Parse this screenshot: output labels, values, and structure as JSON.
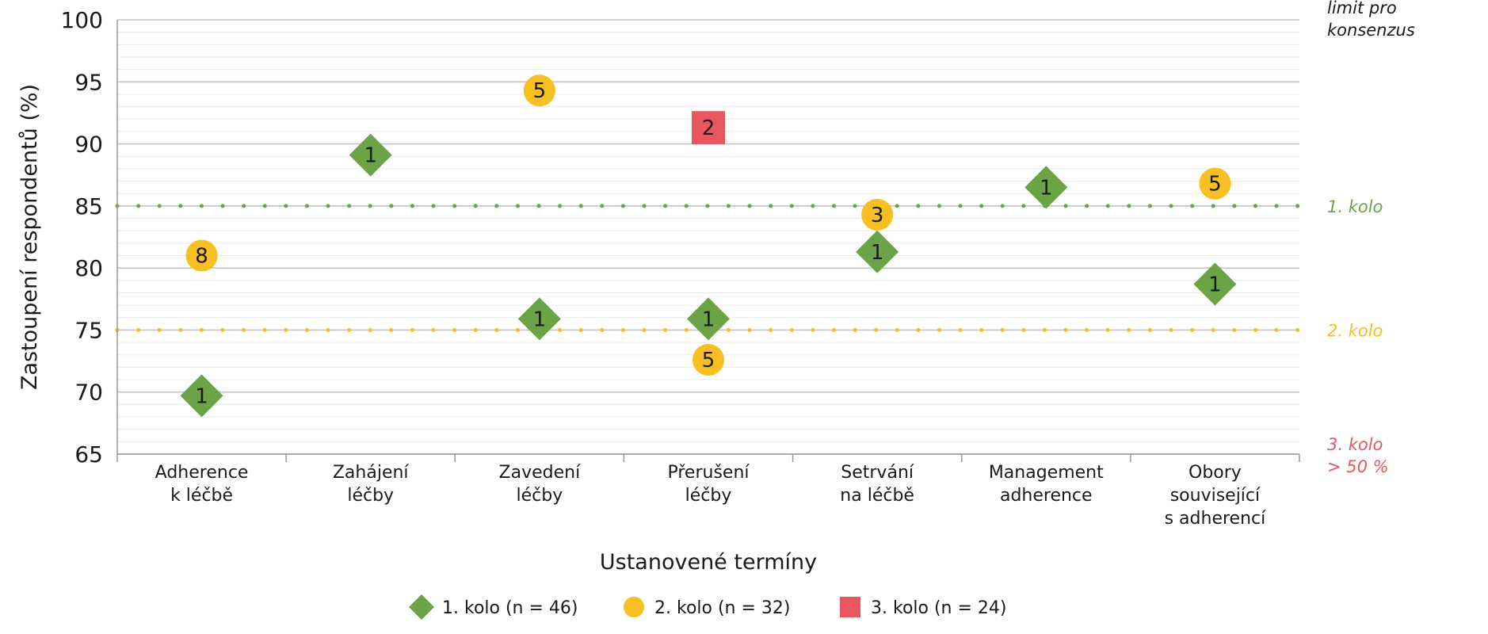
{
  "colors": {
    "round1": "#6aa446",
    "round2": "#f7bf21",
    "round3": "#e8565e",
    "side_header": "#1a1a1a",
    "grid": "#d6d6d6"
  },
  "chart_data": {
    "type": "scatter",
    "title": "",
    "xlabel": "Ustanovené termíny",
    "ylabel": "Zastoupení respondentů (%)",
    "ylim": [
      65,
      100
    ],
    "yticks": [
      "65",
      "70",
      "75",
      "80",
      "85",
      "90",
      "95",
      "100"
    ],
    "categories": [
      [
        "Adherence",
        "k léčbě"
      ],
      [
        "Zahájení",
        "léčby"
      ],
      [
        "Zavedení",
        "léčby"
      ],
      [
        "Přerušení",
        "léčby"
      ],
      [
        "Setrvání",
        "na léčbě"
      ],
      [
        "Management",
        "adherence"
      ],
      [
        "Obory",
        "související",
        "s adherencí"
      ]
    ],
    "series": [
      {
        "name": "1. kolo (n = 46)",
        "marker": "diamond",
        "points": [
          {
            "category": 0,
            "value": 69.7,
            "label": "1"
          },
          {
            "category": 1,
            "value": 89.1,
            "label": "1"
          },
          {
            "category": 2,
            "value": 75.9,
            "label": "1"
          },
          {
            "category": 3,
            "value": 75.9,
            "label": "1"
          },
          {
            "category": 4,
            "value": 81.3,
            "label": "1"
          },
          {
            "category": 5,
            "value": 86.5,
            "label": "1"
          },
          {
            "category": 6,
            "value": 78.7,
            "label": "1"
          }
        ]
      },
      {
        "name": "2. kolo (n = 32)",
        "marker": "circle",
        "points": [
          {
            "category": 0,
            "value": 81.0,
            "label": "8"
          },
          {
            "category": 2,
            "value": 94.3,
            "label": "5"
          },
          {
            "category": 3,
            "value": 72.6,
            "label": "5"
          },
          {
            "category": 4,
            "value": 84.3,
            "label": "3"
          },
          {
            "category": 6,
            "value": 86.8,
            "label": "5"
          }
        ]
      },
      {
        "name": "3. kolo (n = 24)",
        "marker": "square",
        "points": [
          {
            "category": 3,
            "value": 91.3,
            "label": "2"
          }
        ]
      }
    ],
    "threshold_lines": [
      {
        "value": 85,
        "label": "1. kolo",
        "color": "#6aa446"
      },
      {
        "value": 75,
        "label": "2. kolo",
        "color": "#f7bf21"
      }
    ],
    "side_labels": {
      "header": [
        "limit pro",
        "konsenzus"
      ],
      "round3": [
        "3. kolo",
        "> 50 %"
      ]
    },
    "legend_position": "bottom",
    "grid": true
  }
}
